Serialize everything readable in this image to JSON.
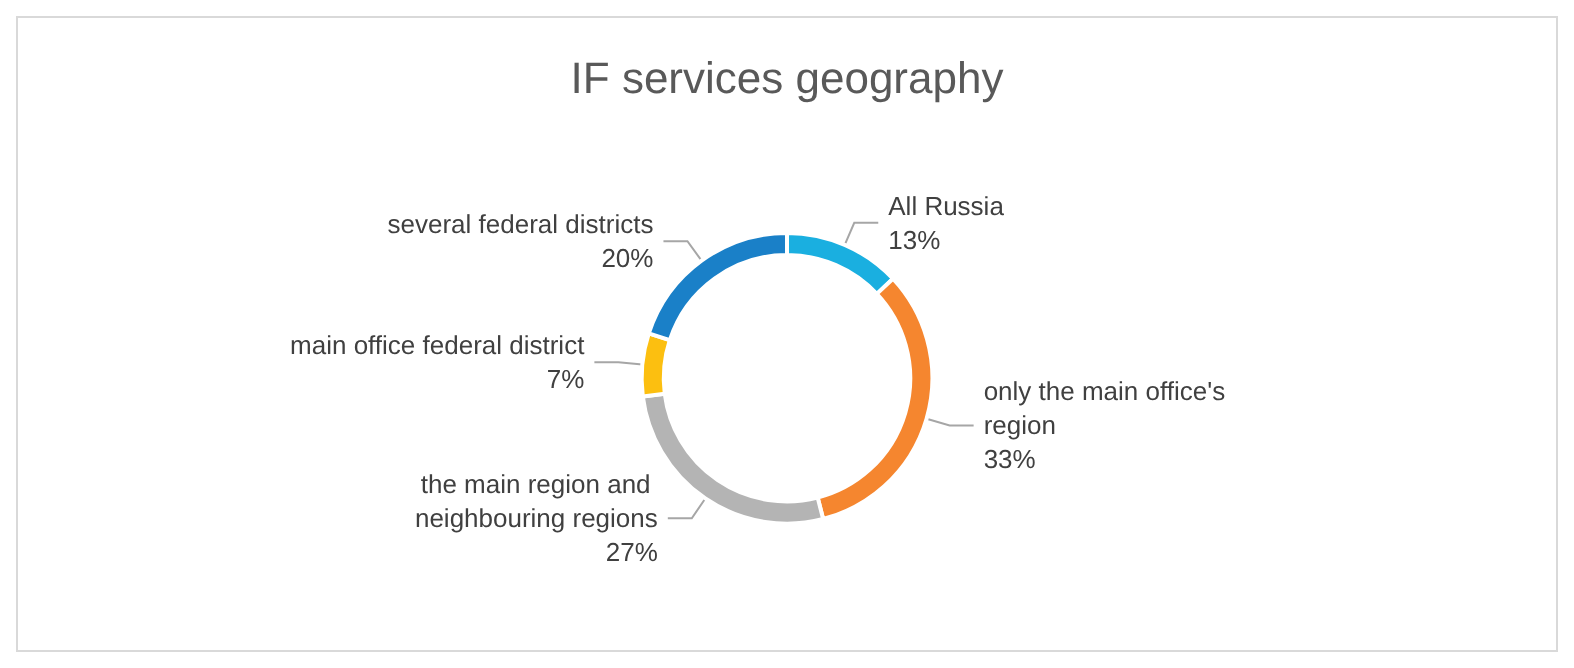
{
  "chart_data": {
    "type": "donut",
    "title": "IF services geography",
    "categories": [
      "All Russia",
      "only the main office's region",
      "the main region and neighbouring regions",
      "main office federal district",
      "several federal districts"
    ],
    "values": [
      13,
      33,
      27,
      7,
      20
    ],
    "value_labels": [
      "13%",
      "33%",
      "27%",
      "7%",
      "20%"
    ],
    "colors": [
      "#1aafe0",
      "#f5862f",
      "#b4b4b4",
      "#fcbf10",
      "#1a80c8"
    ],
    "legend": false
  }
}
